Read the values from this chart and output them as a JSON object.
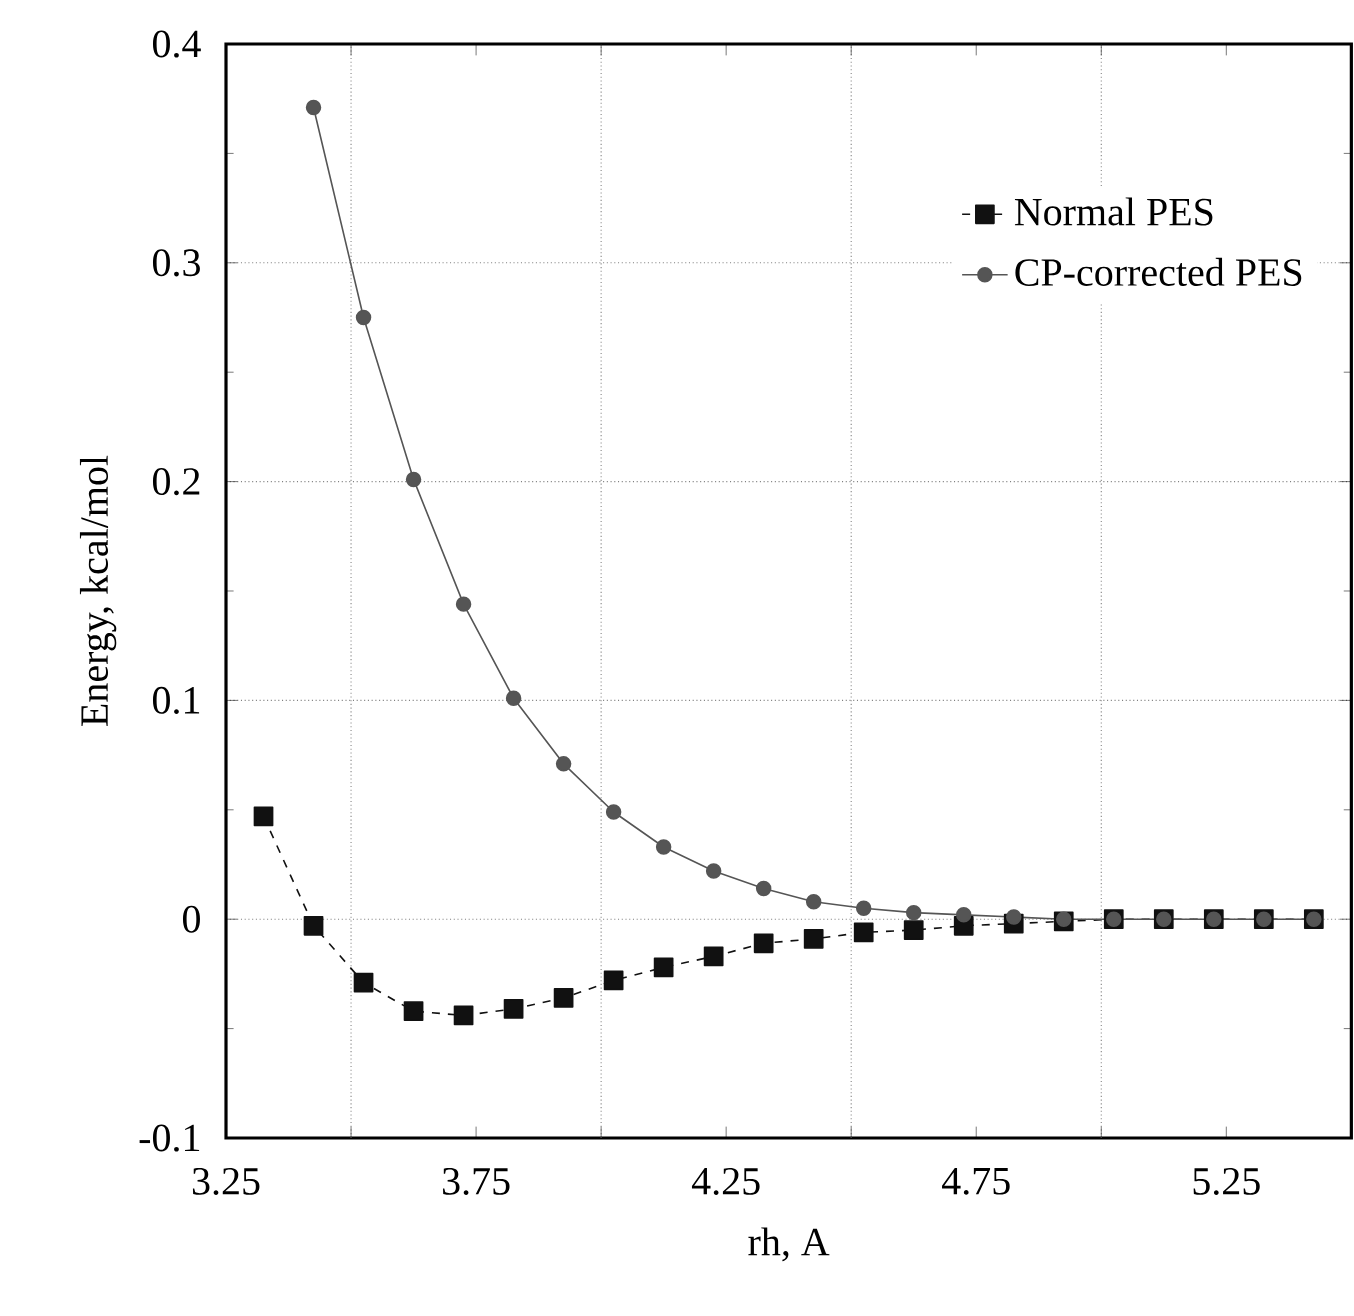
{
  "chart_data": {
    "type": "line",
    "xlabel": "rh, A",
    "ylabel": "Energy, kcal/mol",
    "x": [
      3.325,
      3.425,
      3.525,
      3.625,
      3.725,
      3.825,
      3.925,
      4.025,
      4.125,
      4.225,
      4.325,
      4.425,
      4.525,
      4.625,
      4.725,
      4.825,
      4.925,
      5.025,
      5.125,
      5.225,
      5.325,
      5.425
    ],
    "series": [
      {
        "name": "Normal PES",
        "color": "#111111",
        "marker": "square",
        "line_style": "dashed",
        "values": [
          0.047,
          -0.003,
          -0.029,
          -0.042,
          -0.044,
          -0.041,
          -0.036,
          -0.028,
          -0.022,
          -0.017,
          -0.011,
          -0.009,
          -0.006,
          -0.005,
          -0.003,
          -0.002,
          -0.001,
          0,
          0,
          0,
          0,
          0
        ]
      },
      {
        "name": "CP-corrected PES",
        "color": "#555555",
        "marker": "circle",
        "line_style": "solid",
        "values": [
          null,
          0.371,
          0.275,
          0.201,
          0.144,
          0.101,
          0.071,
          0.049,
          0.033,
          0.022,
          0.014,
          0.008,
          0.005,
          0.003,
          0.002,
          0.001,
          0,
          0,
          0,
          0,
          0,
          0
        ]
      }
    ],
    "xlim": [
      3.25,
      5.5
    ],
    "ylim": [
      -0.1,
      0.4
    ],
    "xticks": [
      3.25,
      {
        "value": 3.5,
        "label": null
      },
      3.75,
      {
        "value": 4.0,
        "label": null
      },
      4.25,
      {
        "value": 4.5,
        "label": null
      },
      4.75,
      {
        "value": 5.0,
        "label": null
      },
      5.25
    ],
    "yticks": [
      -0.1,
      0,
      0.1,
      0.2,
      0.3,
      0.4
    ],
    "grid": true,
    "legend": "top right"
  }
}
